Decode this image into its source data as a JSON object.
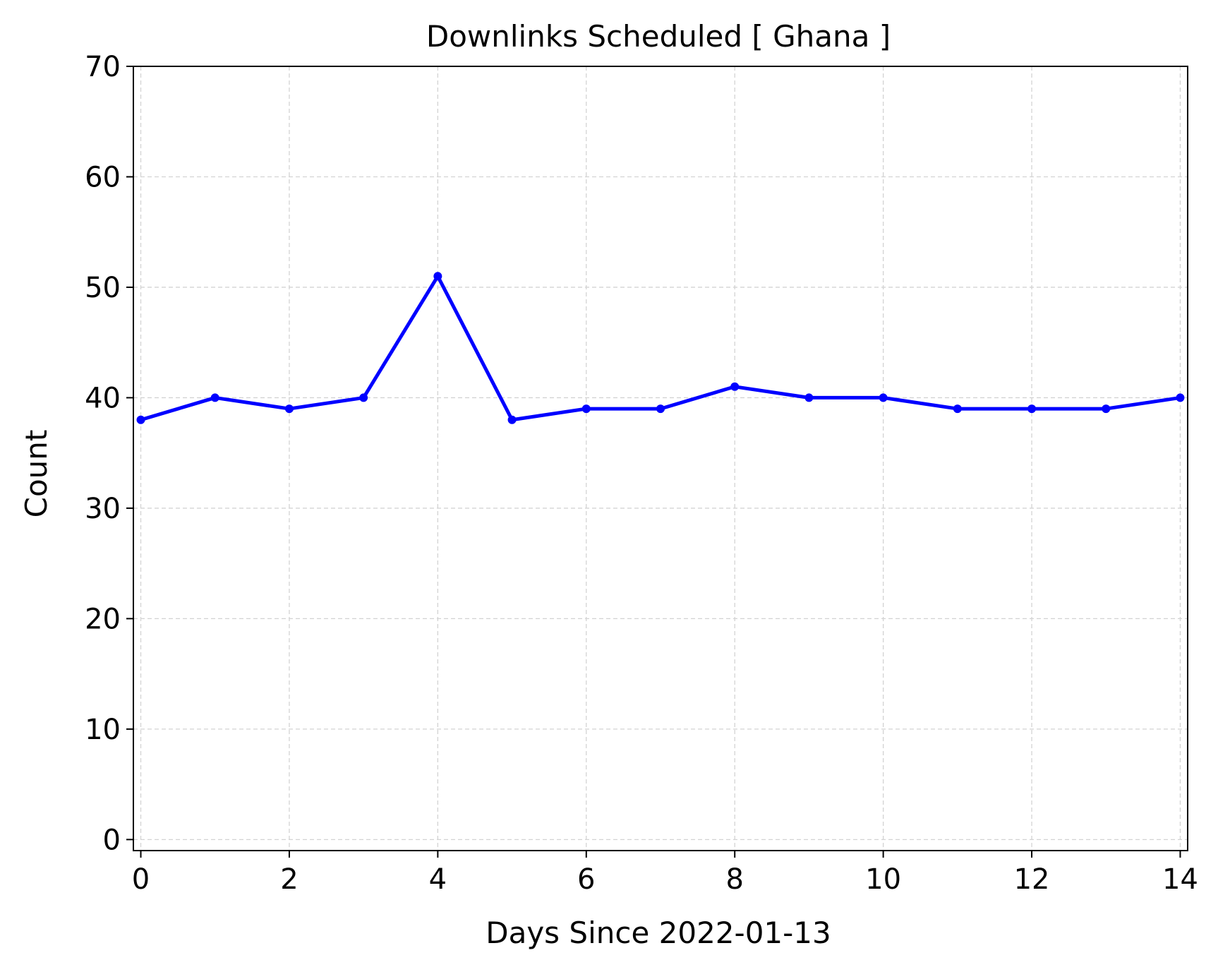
{
  "chart_data": {
    "type": "line",
    "title": "Downlinks Scheduled [ Ghana ]",
    "xlabel": "Days Since 2022-01-13",
    "ylabel": "Count",
    "xlim": [
      -0.1,
      14.1
    ],
    "ylim": [
      -1,
      70
    ],
    "xticks": [
      0,
      2,
      4,
      6,
      8,
      10,
      12,
      14
    ],
    "yticks": [
      0,
      10,
      20,
      30,
      40,
      50,
      60,
      70
    ],
    "grid": true,
    "series": [
      {
        "color": "#0000ff",
        "x": [
          0,
          1,
          2,
          3,
          4,
          5,
          6,
          7,
          8,
          9,
          10,
          11,
          12,
          13,
          14
        ],
        "y": [
          38,
          40,
          39,
          40,
          51,
          38,
          39,
          39,
          41,
          40,
          40,
          39,
          39,
          39,
          40
        ]
      }
    ]
  }
}
